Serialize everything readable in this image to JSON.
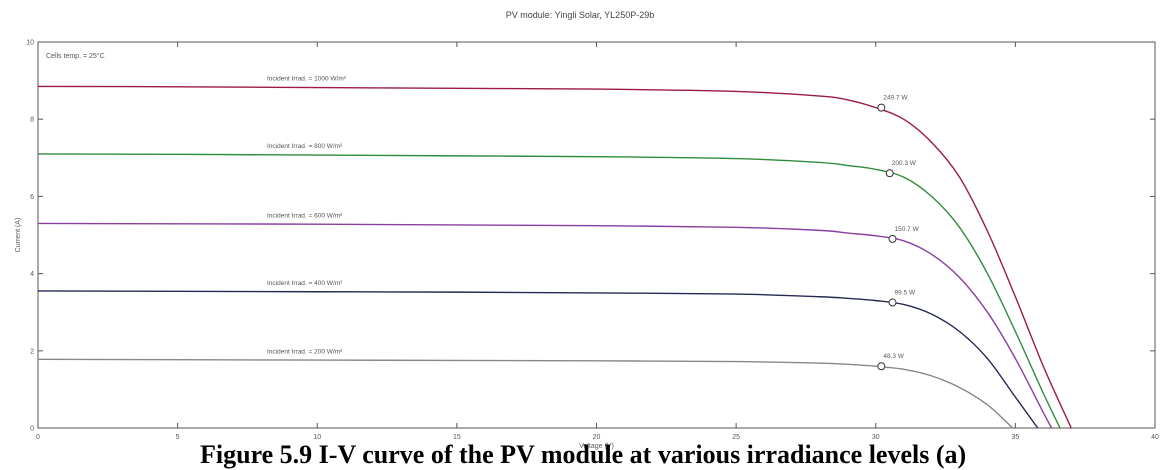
{
  "chart_data": {
    "type": "line",
    "title": "PV module: Yingli Solar, YL250P-29b",
    "xlabel": "Voltage (V)",
    "ylabel": "Current (A)",
    "xlim": [
      0,
      40
    ],
    "ylim": [
      0,
      10
    ],
    "x_ticks": [
      "0",
      "5",
      "10",
      "15",
      "20",
      "25",
      "30",
      "35",
      "40"
    ],
    "y_ticks": [
      "0",
      "2",
      "4",
      "6",
      "8",
      "10"
    ],
    "annotation": "Cells temp. = 25°C",
    "grid": false,
    "series": [
      {
        "name": "Incident Irrad. = 1000 W/m²",
        "color": "#9b1c3e",
        "points": [
          [
            0,
            8.85
          ],
          [
            5,
            8.84
          ],
          [
            10,
            8.82
          ],
          [
            15,
            8.8
          ],
          [
            20,
            8.78
          ],
          [
            25,
            8.72
          ],
          [
            28,
            8.6
          ],
          [
            29,
            8.5
          ],
          [
            30,
            8.3
          ],
          [
            31,
            8.0
          ],
          [
            32,
            7.4
          ],
          [
            33,
            6.5
          ],
          [
            34,
            5.1
          ],
          [
            35,
            3.4
          ],
          [
            36,
            1.6
          ],
          [
            37,
            0.0
          ]
        ],
        "mpp": [
          30.2,
          8.3
        ],
        "mpp_label": "249.7 W"
      },
      {
        "name": "Incident Irrad. = 800 W/m²",
        "color": "#2e8b3c",
        "points": [
          [
            0,
            7.1
          ],
          [
            5,
            7.09
          ],
          [
            10,
            7.07
          ],
          [
            15,
            7.05
          ],
          [
            20,
            7.03
          ],
          [
            25,
            6.98
          ],
          [
            28,
            6.88
          ],
          [
            29,
            6.8
          ],
          [
            30,
            6.7
          ],
          [
            31,
            6.5
          ],
          [
            32,
            6.0
          ],
          [
            33,
            5.2
          ],
          [
            34,
            4.0
          ],
          [
            35,
            2.5
          ],
          [
            36,
            0.9
          ],
          [
            36.6,
            0.0
          ]
        ],
        "mpp": [
          30.5,
          6.6
        ],
        "mpp_label": "200.3 W"
      },
      {
        "name": "Incident Irrad. = 600 W/m²",
        "color": "#8a3fa0",
        "points": [
          [
            0,
            5.3
          ],
          [
            5,
            5.29
          ],
          [
            10,
            5.28
          ],
          [
            15,
            5.26
          ],
          [
            20,
            5.24
          ],
          [
            25,
            5.2
          ],
          [
            28,
            5.12
          ],
          [
            29,
            5.05
          ],
          [
            30,
            4.98
          ],
          [
            31,
            4.85
          ],
          [
            32,
            4.5
          ],
          [
            33,
            3.9
          ],
          [
            34,
            3.0
          ],
          [
            35,
            1.8
          ],
          [
            36,
            0.4
          ],
          [
            36.3,
            0.0
          ]
        ],
        "mpp": [
          30.6,
          4.9
        ],
        "mpp_label": "150.7 W"
      },
      {
        "name": "Incident Irrad. = 400 W/m²",
        "color": "#252a55",
        "points": [
          [
            0,
            3.55
          ],
          [
            5,
            3.54
          ],
          [
            10,
            3.53
          ],
          [
            15,
            3.52
          ],
          [
            20,
            3.5
          ],
          [
            25,
            3.47
          ],
          [
            28,
            3.4
          ],
          [
            29,
            3.36
          ],
          [
            30,
            3.3
          ],
          [
            31,
            3.2
          ],
          [
            32,
            2.95
          ],
          [
            33,
            2.5
          ],
          [
            34,
            1.8
          ],
          [
            35,
            0.8
          ],
          [
            35.8,
            0.0
          ]
        ],
        "mpp": [
          30.6,
          3.25
        ],
        "mpp_label": "99.5 W"
      },
      {
        "name": "Incident Irrad. = 200 W/m²",
        "color": "#888888",
        "points": [
          [
            0,
            1.78
          ],
          [
            5,
            1.77
          ],
          [
            10,
            1.76
          ],
          [
            15,
            1.75
          ],
          [
            20,
            1.74
          ],
          [
            25,
            1.72
          ],
          [
            28,
            1.68
          ],
          [
            29,
            1.65
          ],
          [
            30,
            1.6
          ],
          [
            31,
            1.52
          ],
          [
            32,
            1.35
          ],
          [
            33,
            1.05
          ],
          [
            34,
            0.6
          ],
          [
            34.9,
            0.0
          ]
        ],
        "mpp": [
          30.2,
          1.6
        ],
        "mpp_label": "48.3 W"
      }
    ]
  },
  "caption": "Figure 5.9 I-V curve of the PV module at various irradiance levels (a)"
}
